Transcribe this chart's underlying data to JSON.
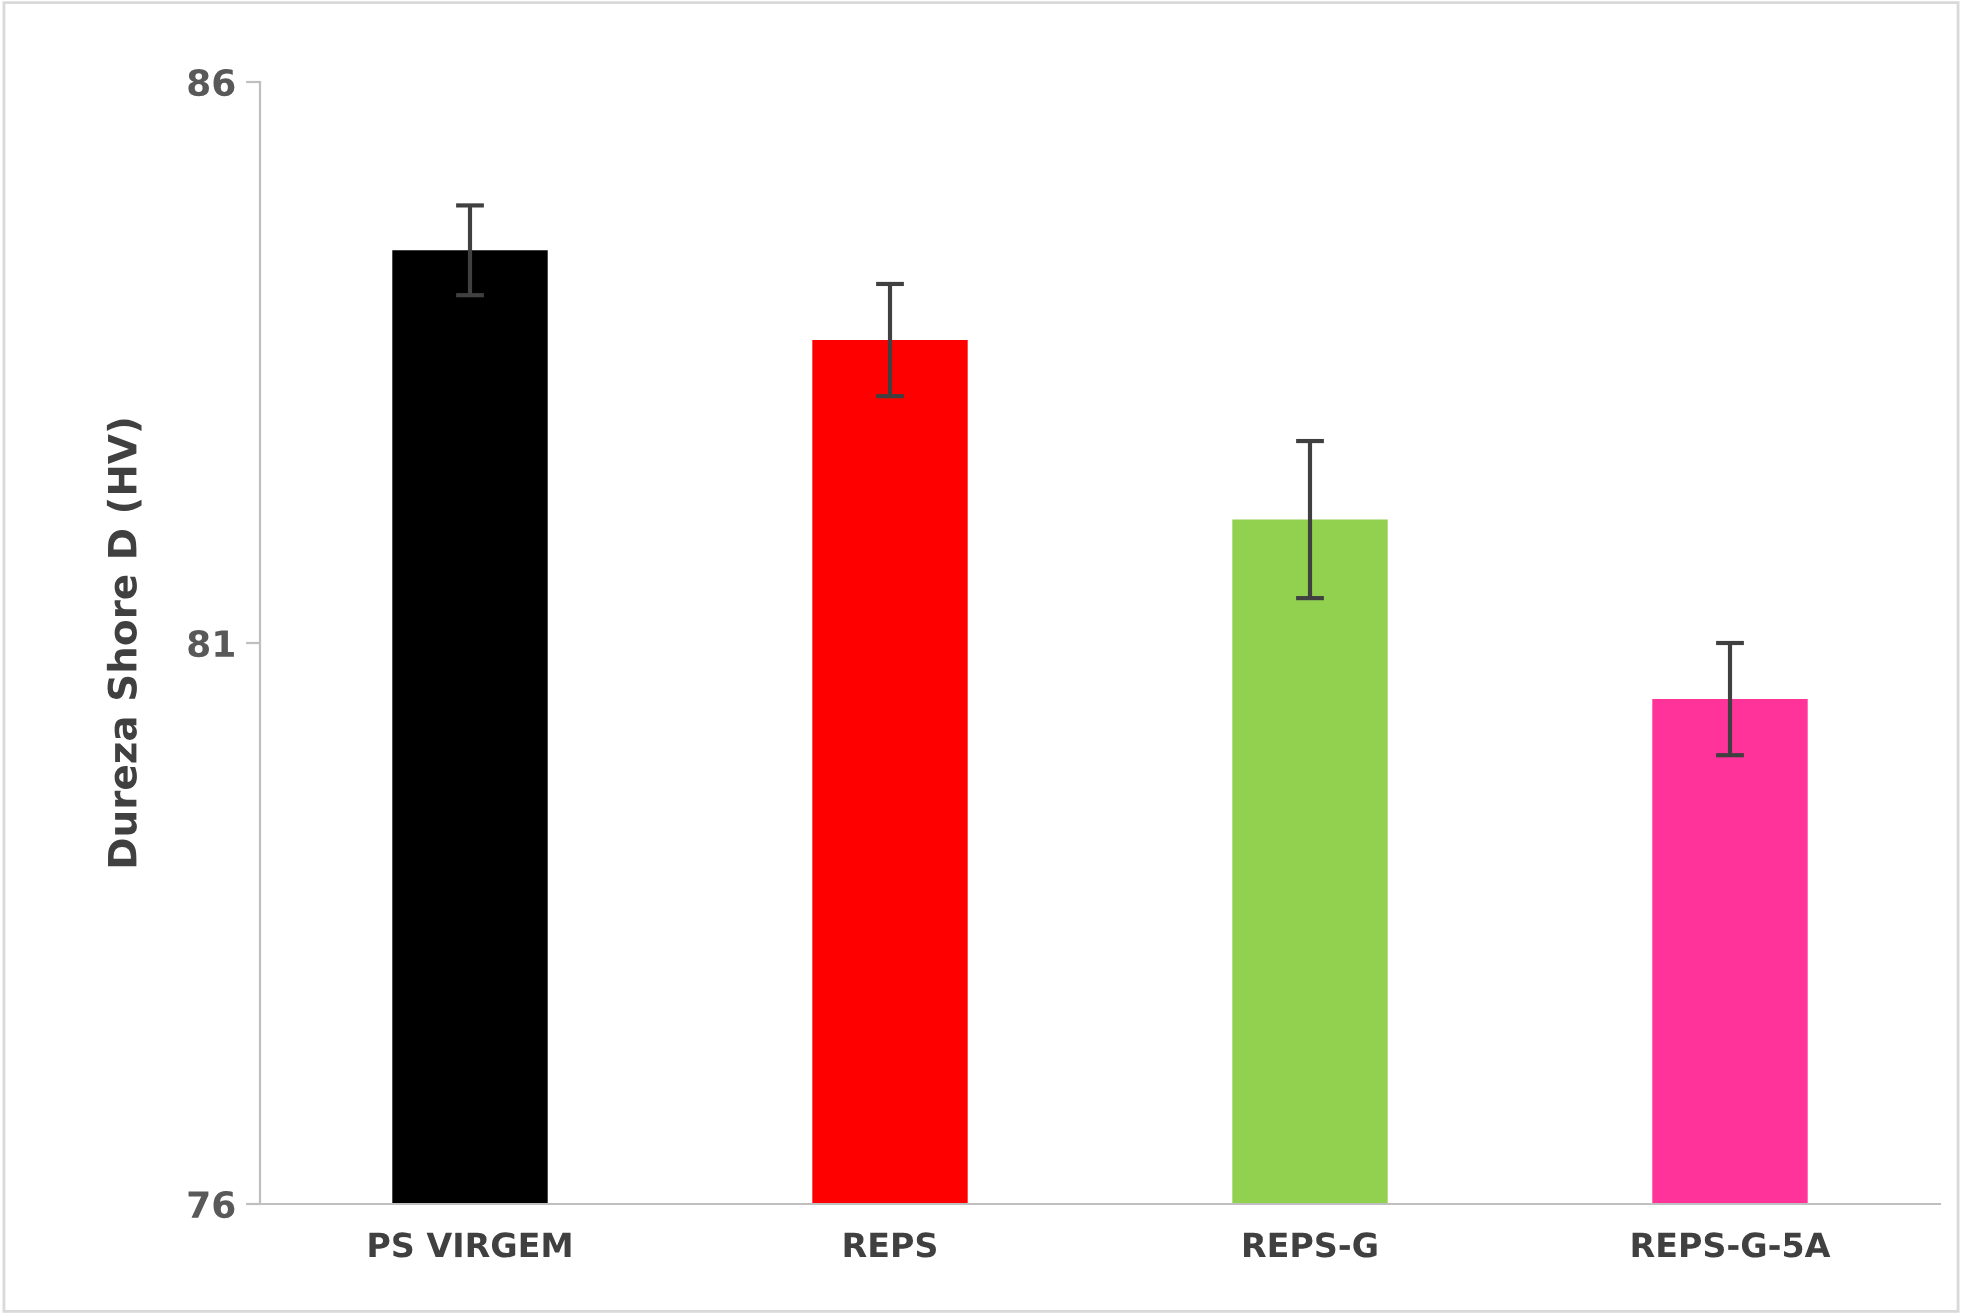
{
  "chart_data": {
    "type": "bar",
    "ylabel": "Dureza Shore D (HV)",
    "categories": [
      "PS VIRGEM",
      "REPS",
      "REPS-G",
      "REPS-G-5A"
    ],
    "values": [
      84.5,
      83.7,
      82.1,
      80.5
    ],
    "colors": [
      "#000000",
      "#ff0000",
      "#92d050",
      "#ff3399"
    ],
    "errors": [
      0.4,
      0.5,
      0.7,
      0.5
    ],
    "ylim": [
      76,
      86
    ],
    "yticks": [
      76,
      81,
      86
    ],
    "grid": false,
    "legend": false
  }
}
